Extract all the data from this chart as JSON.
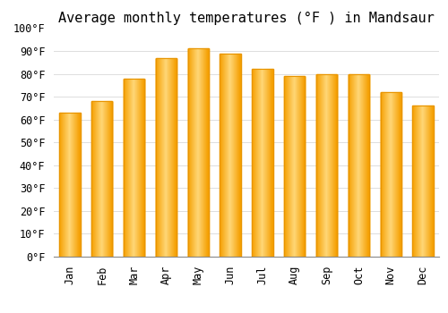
{
  "title": "Average monthly temperatures (°F ) in Mandsaur",
  "months": [
    "Jan",
    "Feb",
    "Mar",
    "Apr",
    "May",
    "Jun",
    "Jul",
    "Aug",
    "Sep",
    "Oct",
    "Nov",
    "Dec"
  ],
  "values": [
    63,
    68,
    78,
    87,
    91,
    89,
    82,
    79,
    80,
    80,
    72,
    66
  ],
  "bar_color_light": "#FFD060",
  "bar_color_main": "#FFA500",
  "bar_color_edge": "#E89400",
  "background_color": "#FFFFFF",
  "ylim": [
    0,
    100
  ],
  "yticks": [
    0,
    10,
    20,
    30,
    40,
    50,
    60,
    70,
    80,
    90,
    100
  ],
  "grid_color": "#DDDDDD",
  "title_fontsize": 11,
  "tick_fontsize": 8.5,
  "bar_width": 0.65
}
